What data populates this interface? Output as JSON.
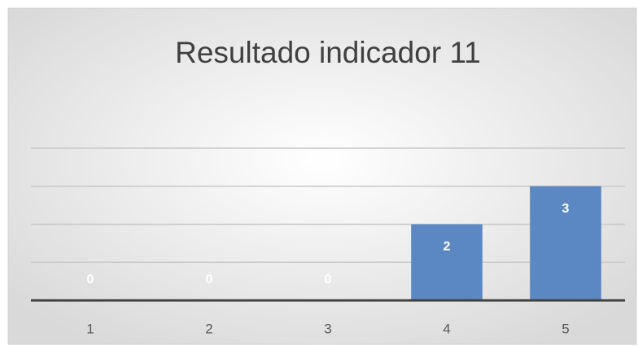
{
  "chart_data": {
    "type": "bar",
    "title": "Resultado indicador 11",
    "categories": [
      "1",
      "2",
      "3",
      "4",
      "5"
    ],
    "values": [
      0,
      0,
      0,
      2,
      3
    ],
    "color": "#5b87c2",
    "ylim": [
      0,
      4
    ],
    "yticks": [
      0,
      1,
      2,
      3,
      4
    ],
    "grid": true
  }
}
